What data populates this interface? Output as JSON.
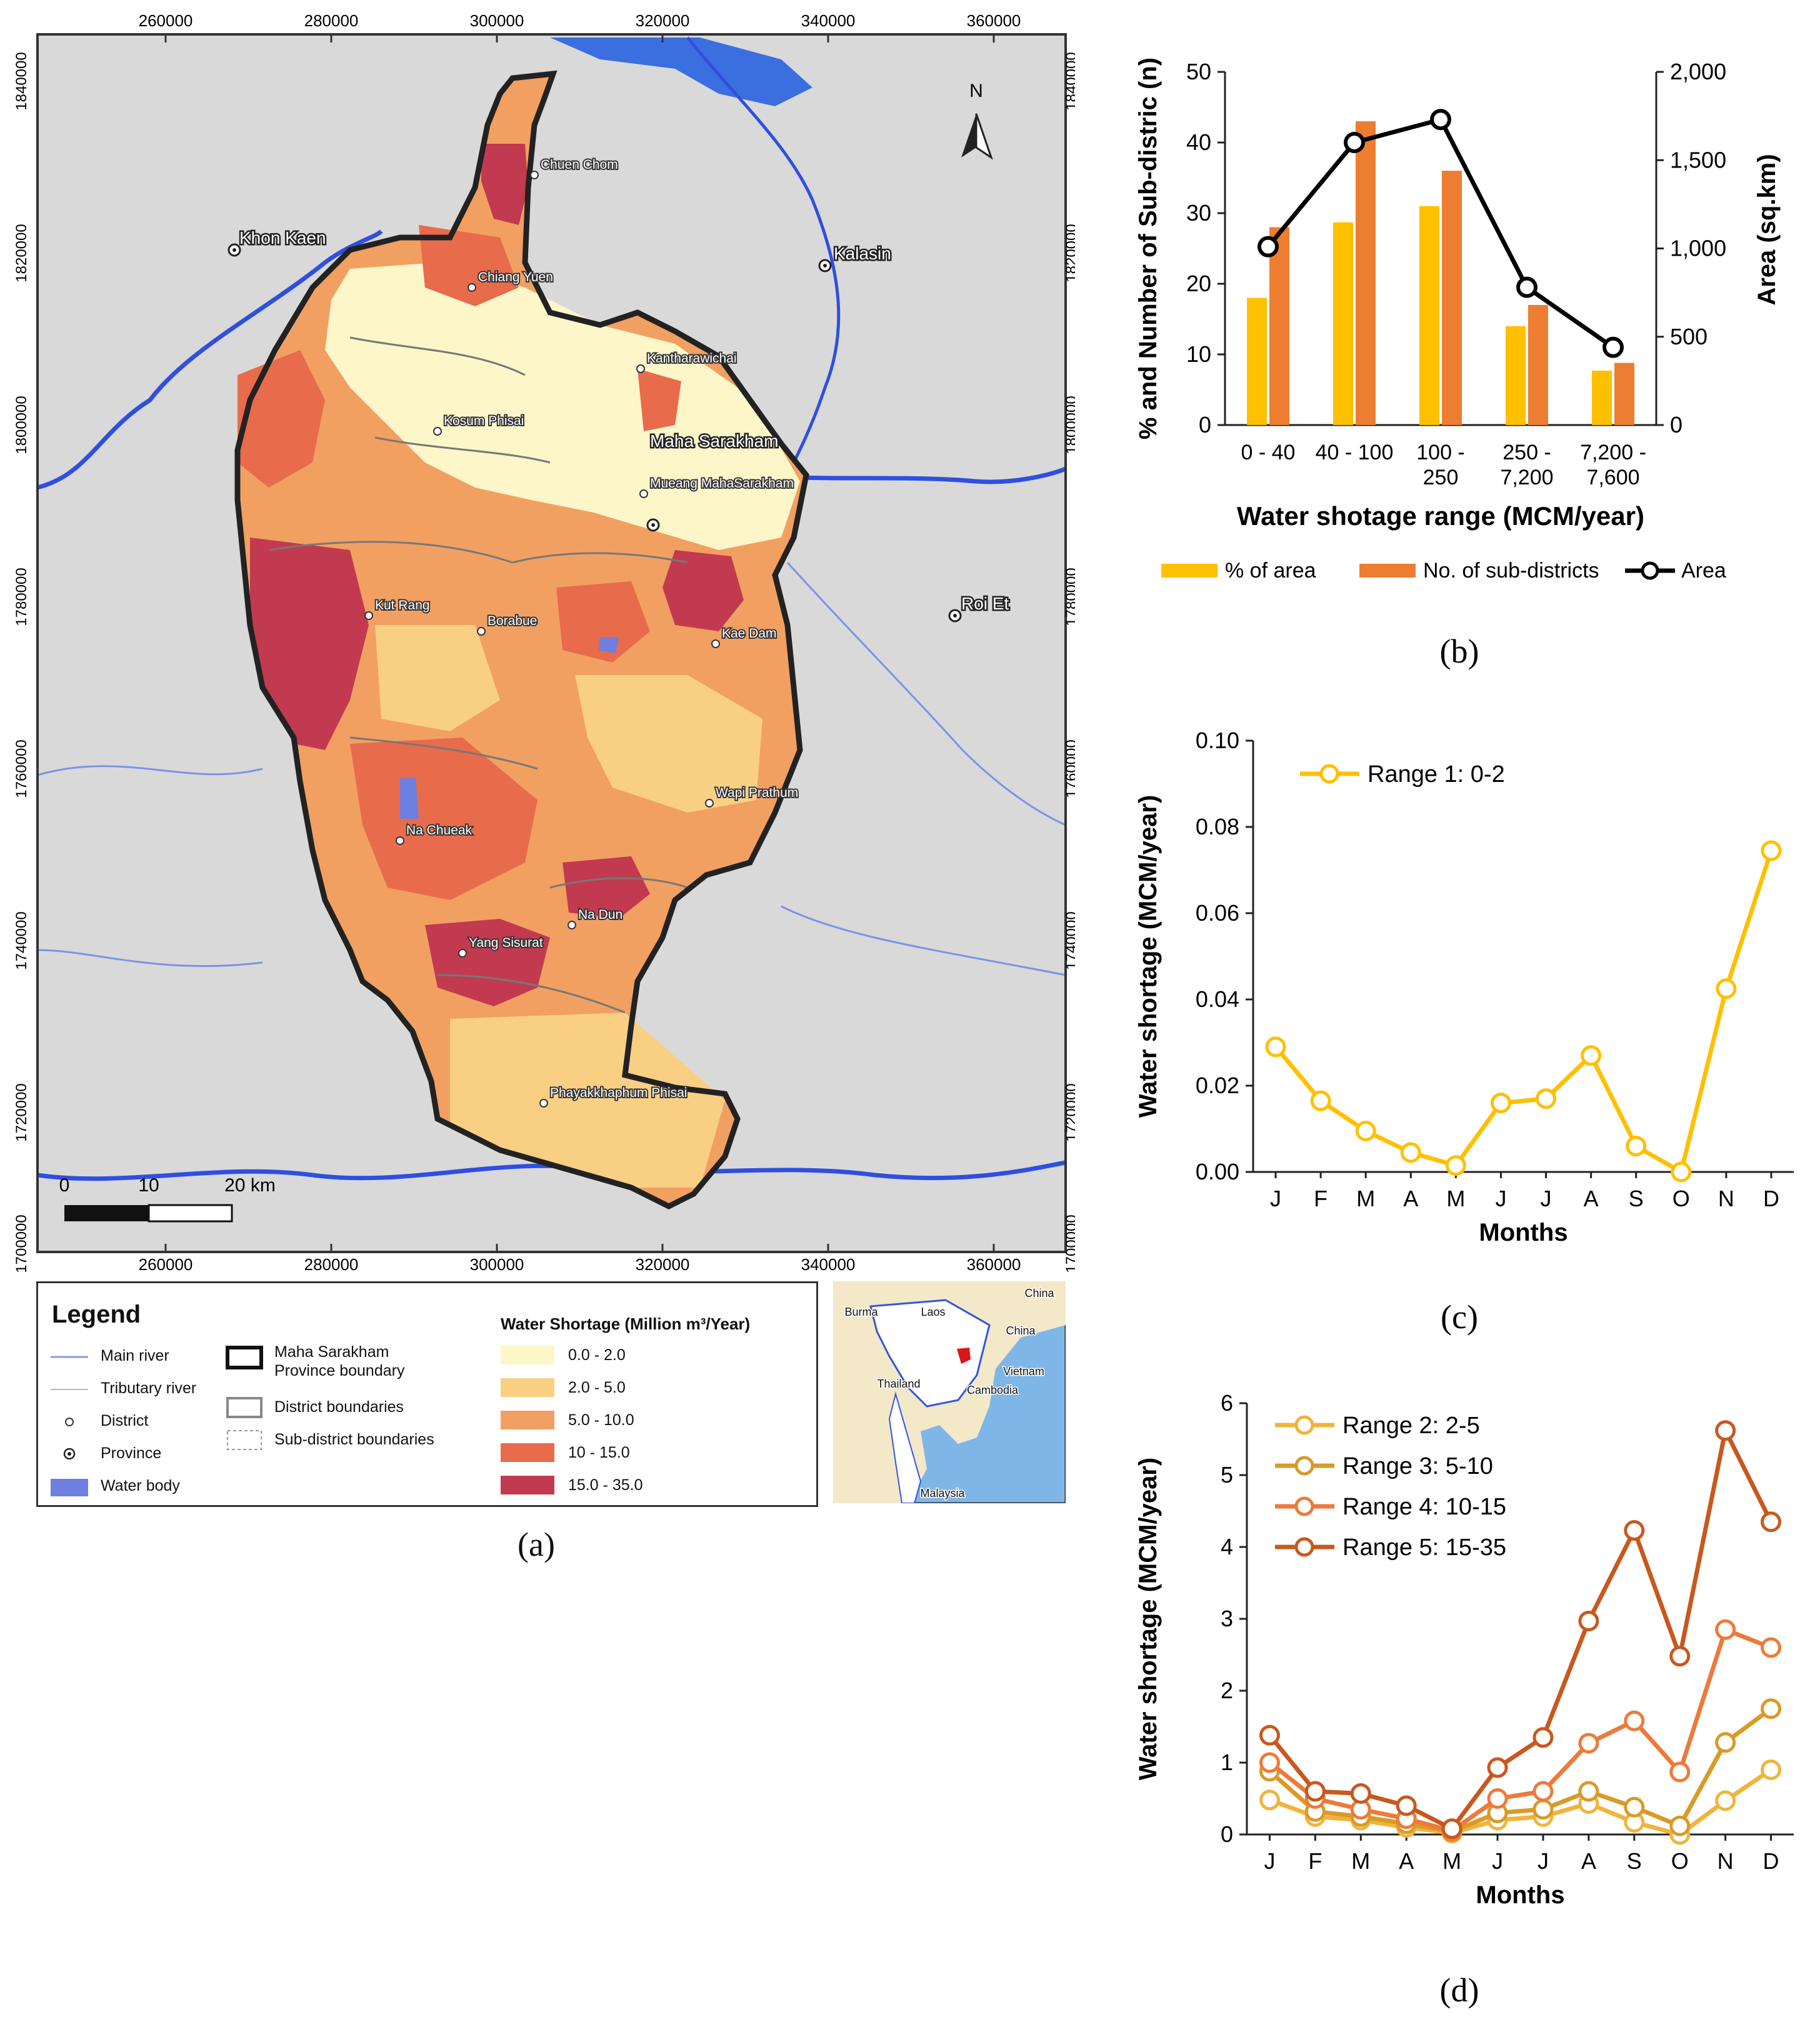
{
  "map": {
    "top_ticks": [
      "260000",
      "280000",
      "300000",
      "320000",
      "340000",
      "360000"
    ],
    "bottom_ticks": [
      "260000",
      "280000",
      "300000",
      "320000",
      "340000",
      "360000"
    ],
    "left_ticks": [
      "1840000",
      "1820000",
      "1800000",
      "1780000",
      "1760000",
      "1740000",
      "1720000",
      "1700000"
    ],
    "right_ticks": [
      "1840000",
      "1820000",
      "1800000",
      "1780000",
      "1760000",
      "1740000",
      "1720000",
      "1700000"
    ],
    "north_label": "N",
    "province_labels": [
      "Khon Kaen",
      "Kalasin",
      "Maha Sarakham",
      "Roi Et"
    ],
    "district_labels": [
      "Chuen Chom",
      "Chiang Yuen",
      "Kantharawichai",
      "Kosum Phisai",
      "Mueang MahaSarakham",
      "Kut Rang",
      "Borabue",
      "Kae Dam",
      "Wapi Prathum",
      "Na Chueak",
      "Na Dun",
      "Yang Sisurat",
      "Phayakkhaphum Phisai"
    ],
    "scale": {
      "zero": "0",
      "ten": "10",
      "twenty": "20 km"
    },
    "caption": "(a)"
  },
  "legend": {
    "title": "Legend",
    "items": {
      "main_river": "Main river",
      "tributary_river": "Tributary river",
      "district": "District",
      "province": "Province",
      "water_body": "Water body",
      "province_boundary_1": "Maha Sarakham",
      "province_boundary_2": "Province boundary",
      "district_boundaries": "District boundaries",
      "subdistrict_boundaries": "Sub-district boundaries"
    },
    "ws_title": "Water Shortage (Million m³/Year)",
    "classes": [
      {
        "label": "0.0 - 2.0",
        "color": "#fdf6c9"
      },
      {
        "label": "2.0 - 5.0",
        "color": "#f9cf84"
      },
      {
        "label": "5.0 - 10.0",
        "color": "#f1a062"
      },
      {
        "label": "10 - 15.0",
        "color": "#e86b4c"
      },
      {
        "label": "15.0 - 35.0",
        "color": "#c23a4f"
      }
    ]
  },
  "inset": {
    "labels": [
      "China",
      "Burma",
      "Laos",
      "China",
      "Vietnam",
      "Thailand",
      "Cambodia",
      "Malaysia"
    ]
  },
  "colors": {
    "area_bar": "#ffc000",
    "subdistrict_bar": "#ed7d31",
    "area_line": "#000000",
    "range1": "#ffc000",
    "range2": "#f0b43c",
    "range3": "#d99a28",
    "range4": "#ee7a3a",
    "range5": "#c8581e",
    "river": "#3355dd"
  },
  "chart_data": [
    {
      "type": "bar",
      "caption": "(b)",
      "categories": [
        [
          "0 - 40"
        ],
        [
          "40 - 100"
        ],
        [
          "100 -",
          "250"
        ],
        [
          "250 -",
          "7,200"
        ],
        [
          "7,200 -",
          "7,600"
        ]
      ],
      "series": [
        {
          "name": "% of area",
          "axis": "left",
          "values": [
            18,
            28.7,
            31,
            14,
            7.7
          ]
        },
        {
          "name": "No. of sub-districts",
          "axis": "left",
          "values": [
            28,
            43,
            36,
            17,
            8.8
          ]
        },
        {
          "name": "Area",
          "axis": "right",
          "type": "line",
          "values": [
            1010,
            1600,
            1730,
            780,
            440
          ]
        }
      ],
      "xlabel": "Water shotage range (MCM/year)",
      "ylabel": "% and Number of Sub-distric (n)",
      "y2label": "Area (sq.km)",
      "ylim": [
        0,
        50
      ],
      "y2lim": [
        0,
        2000
      ],
      "yticks": [
        "0",
        "10",
        "20",
        "30",
        "40",
        "50"
      ],
      "y2ticks": [
        "0",
        "500",
        "1,000",
        "1,500",
        "2,000"
      ]
    },
    {
      "type": "line",
      "caption": "(c)",
      "x": [
        "J",
        "F",
        "M",
        "A",
        "M",
        "J",
        "J",
        "A",
        "S",
        "O",
        "N",
        "D"
      ],
      "series": [
        {
          "name": "Range 1: 0-2",
          "values": [
            0.029,
            0.0165,
            0.0095,
            0.0045,
            0.0015,
            0.016,
            0.017,
            0.027,
            0.006,
            0.0,
            0.0425,
            0.0745
          ]
        }
      ],
      "xlabel": "Months",
      "ylabel": "Water shortage (MCM/year)",
      "ylim": [
        0,
        0.1
      ],
      "yticks": [
        "0.00",
        "0.02",
        "0.04",
        "0.06",
        "0.08",
        "0.10"
      ]
    },
    {
      "type": "line",
      "caption": "(d)",
      "x": [
        "J",
        "F",
        "M",
        "A",
        "M",
        "J",
        "J",
        "A",
        "S",
        "O",
        "N",
        "D"
      ],
      "series": [
        {
          "name": "Range 2: 2-5",
          "values": [
            0.48,
            0.25,
            0.2,
            0.1,
            0.02,
            0.2,
            0.25,
            0.43,
            0.17,
            0.0,
            0.47,
            0.9
          ]
        },
        {
          "name": "Range 3: 5-10",
          "values": [
            0.88,
            0.32,
            0.25,
            0.15,
            0.04,
            0.3,
            0.35,
            0.6,
            0.38,
            0.12,
            1.28,
            1.75
          ]
        },
        {
          "name": "Range 4: 10-15",
          "values": [
            1.0,
            0.5,
            0.35,
            0.22,
            0.05,
            0.5,
            0.6,
            1.27,
            1.58,
            0.87,
            2.85,
            2.6
          ]
        },
        {
          "name": "Range 5: 15-35",
          "values": [
            1.38,
            0.6,
            0.57,
            0.4,
            0.08,
            0.93,
            1.35,
            2.97,
            4.23,
            2.48,
            5.62,
            4.35
          ]
        }
      ],
      "xlabel": "Months",
      "ylabel": "Water shortage (MCM/year)",
      "ylim": [
        0,
        6
      ],
      "yticks": [
        "0",
        "1",
        "2",
        "3",
        "4",
        "5",
        "6"
      ]
    }
  ]
}
